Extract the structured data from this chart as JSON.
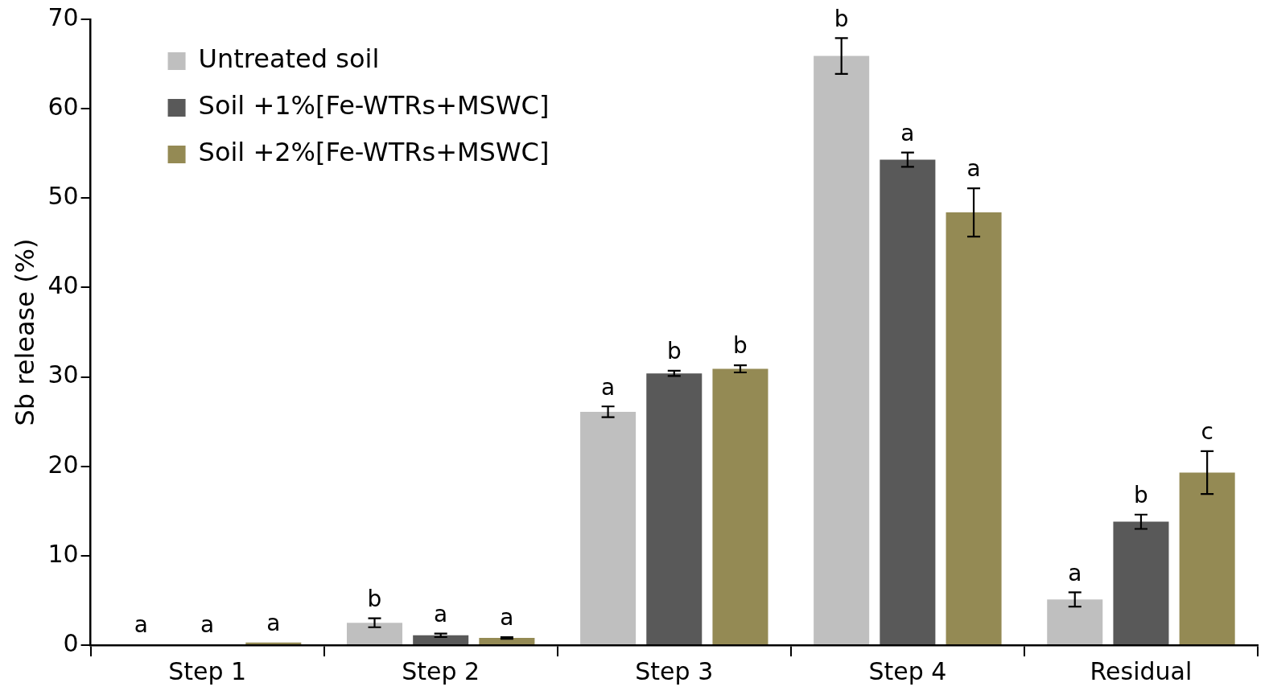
{
  "chart_data": {
    "type": "bar",
    "ylabel": "Sb release (%)",
    "categories": [
      "Step 1",
      "Step 2",
      "Step 3",
      "Step 4",
      "Residual"
    ],
    "series": [
      {
        "name": "Untreated soil",
        "color": "#bfbfbf",
        "values": [
          0.1,
          2.5,
          26.1,
          65.9,
          5.1
        ],
        "errors": [
          null,
          0.5,
          0.6,
          2.0,
          0.8
        ],
        "value_labels": [
          "a",
          "b",
          "a",
          "b",
          "a"
        ]
      },
      {
        "name": "Soil +1%[Fe-WTRs+MSWC]",
        "color": "#595959",
        "values": [
          0.1,
          1.1,
          30.4,
          54.3,
          13.8
        ],
        "errors": [
          null,
          0.2,
          0.3,
          0.8,
          0.8
        ],
        "value_labels": [
          "a",
          "a",
          "b",
          "a",
          "b"
        ]
      },
      {
        "name": "Soil +2%[Fe-WTRs+MSWC]",
        "color": "#948a54",
        "values": [
          0.3,
          0.8,
          30.9,
          48.4,
          19.3
        ],
        "errors": [
          null,
          0.1,
          0.4,
          2.7,
          2.4
        ],
        "value_labels": [
          "a",
          "a",
          "b",
          "a",
          "c"
        ]
      }
    ],
    "ylim": [
      0,
      70
    ],
    "yticks": [
      0,
      10,
      20,
      30,
      40,
      50,
      60,
      70
    ],
    "grid": false,
    "legend": "top left"
  }
}
